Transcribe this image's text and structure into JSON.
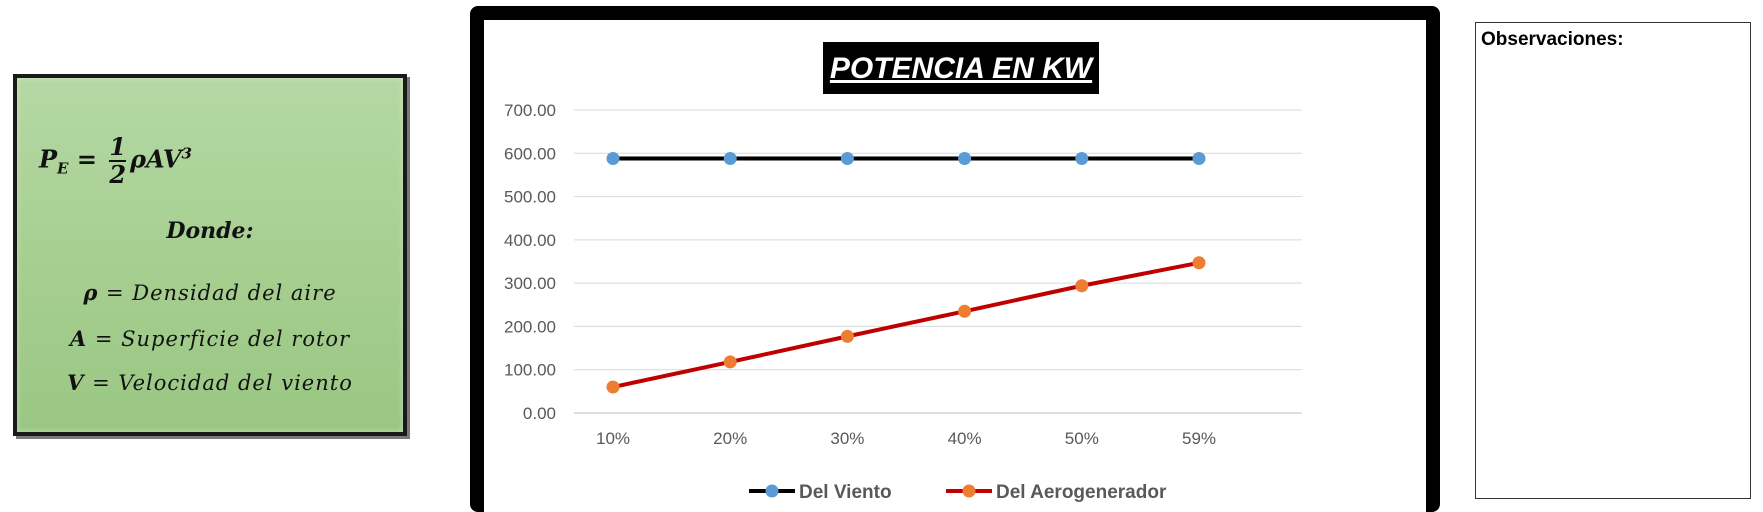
{
  "formula": {
    "lhs_base": "P",
    "lhs_sub": "E",
    "frac_num": "1",
    "frac_den": "2",
    "rhs_main": "ρAV",
    "rhs_sup": "3",
    "donde": "Donde:",
    "defs": [
      {
        "sym": "ρ",
        "text": " = Densidad del aire"
      },
      {
        "sym": "A",
        "text": " = Superficie del rotor"
      },
      {
        "sym": "V",
        "text": " = Velocidad del viento"
      }
    ]
  },
  "observations": {
    "label": "Observaciones:"
  },
  "colors": {
    "series_1_line": "#000000",
    "series_1_marker": "#5b9bd5",
    "series_2_line": "#c00000",
    "series_2_marker": "#ed7d31",
    "title_bg": "#000000",
    "title_fg": "#ffffff"
  },
  "chart_data": {
    "type": "line",
    "title": "POTENCIA EN KW",
    "categories": [
      "10%",
      "20%",
      "30%",
      "40%",
      "50%",
      "59%"
    ],
    "ylim": [
      0,
      700
    ],
    "yticks": [
      "0.00",
      "100.00",
      "200.00",
      "300.00",
      "400.00",
      "500.00",
      "600.00",
      "700.00"
    ],
    "grid": true,
    "legend": "bottom",
    "series": [
      {
        "name": "Del Viento",
        "values": [
          588,
          588,
          588,
          588,
          588,
          588
        ]
      },
      {
        "name": "Del Aerogenerador",
        "values": [
          60,
          118,
          177,
          235,
          294,
          347
        ]
      }
    ]
  }
}
